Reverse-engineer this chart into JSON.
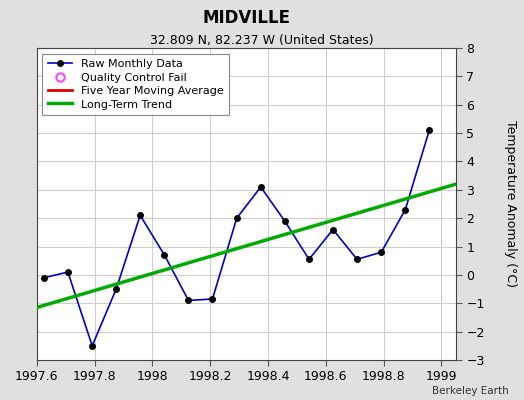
{
  "title": "MIDVILLE",
  "subtitle": "32.809 N, 82.237 W (United States)",
  "attribution": "Berkeley Earth",
  "raw_x": [
    1997.625,
    1997.708,
    1997.792,
    1997.875,
    1997.958,
    1998.042,
    1998.125,
    1998.208,
    1998.292,
    1998.375,
    1998.458,
    1998.542,
    1998.625,
    1998.708,
    1998.792,
    1998.875,
    1998.958
  ],
  "raw_y": [
    -0.1,
    0.1,
    -2.5,
    -0.5,
    2.1,
    0.7,
    -0.9,
    -0.85,
    2.0,
    3.1,
    1.9,
    0.55,
    1.6,
    0.55,
    0.8,
    2.3,
    5.1
  ],
  "trend_x": [
    1997.6,
    1999.05
  ],
  "trend_y": [
    -1.15,
    3.2
  ],
  "xlim": [
    1997.6,
    1999.05
  ],
  "ylim": [
    -3,
    8
  ],
  "yticks": [
    -3,
    -2,
    -1,
    0,
    1,
    2,
    3,
    4,
    5,
    6,
    7,
    8
  ],
  "xticks": [
    1997.6,
    1997.8,
    1998.0,
    1998.2,
    1998.4,
    1998.6,
    1998.8,
    1999.0
  ],
  "raw_color": "#0000cc",
  "trend_color": "#00aa00",
  "mavg_color": "#dd0000",
  "qc_color": "#ff44ff",
  "bg_color": "#e0e0e0",
  "plot_bg_color": "#ffffff",
  "grid_color": "#cccccc",
  "ylabel": "Temperature Anomaly (°C)",
  "title_fontsize": 12,
  "subtitle_fontsize": 9,
  "tick_fontsize": 9,
  "ylabel_fontsize": 9
}
